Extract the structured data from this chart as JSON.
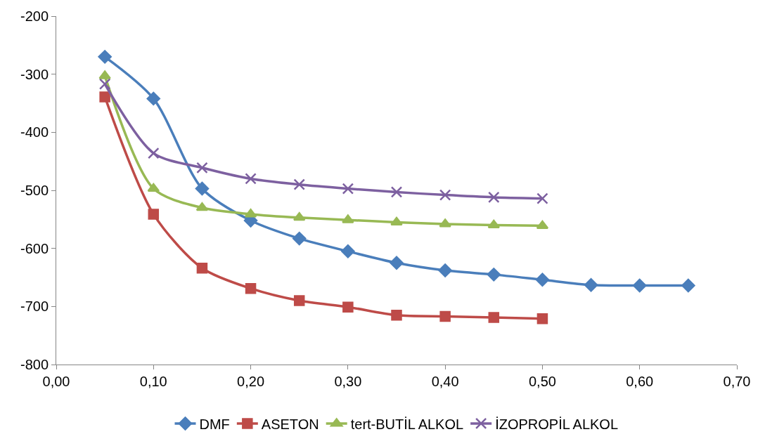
{
  "chart_data": {
    "type": "line",
    "x": [
      0.05,
      0.1,
      0.15,
      0.2,
      0.25,
      0.3,
      0.35,
      0.4,
      0.45,
      0.5,
      0.55,
      0.6,
      0.65
    ],
    "series": [
      {
        "name": "DMF",
        "color": "#4a7ebb",
        "marker": "diamond",
        "values": [
          -270,
          -342,
          -497,
          -552,
          -583,
          -605,
          -625,
          -638,
          -645,
          -654,
          -663,
          -664,
          -664
        ]
      },
      {
        "name": "ASETON",
        "color": "#be4b48",
        "marker": "square",
        "values": [
          -339,
          -541,
          -634,
          -669,
          -690,
          -701,
          -715,
          -717,
          -719,
          -721,
          null,
          null,
          null
        ]
      },
      {
        "name": "tert-BUTİL ALKOL",
        "color": "#98b954",
        "marker": "triangle",
        "values": [
          -303,
          -497,
          -530,
          -541,
          -547,
          -551,
          -555,
          -558,
          -560,
          -561,
          null,
          null,
          null
        ]
      },
      {
        "name": "İZOPROPİL ALKOL",
        "color": "#7d60a0",
        "marker": "cross",
        "values": [
          -317,
          -436,
          -461,
          -480,
          -490,
          -497,
          -503,
          -508,
          -512,
          -514,
          null,
          null,
          null
        ]
      }
    ],
    "xlim": [
      0,
      0.7
    ],
    "xticks": [
      {
        "value": 0,
        "label": "0,00"
      },
      {
        "value": 0.1,
        "label": "0,10"
      },
      {
        "value": 0.2,
        "label": "0,20"
      },
      {
        "value": 0.3,
        "label": "0,30"
      },
      {
        "value": 0.4,
        "label": "0,40"
      },
      {
        "value": 0.5,
        "label": "0,50"
      },
      {
        "value": 0.6,
        "label": "0,60"
      },
      {
        "value": 0.7,
        "label": "0,70"
      }
    ],
    "ylim": [
      -800,
      -200
    ],
    "yticks": [
      -800,
      -700,
      -600,
      -500,
      -400,
      -300,
      -200
    ],
    "grid": false,
    "legend": "bottom",
    "line_style": "solid"
  }
}
